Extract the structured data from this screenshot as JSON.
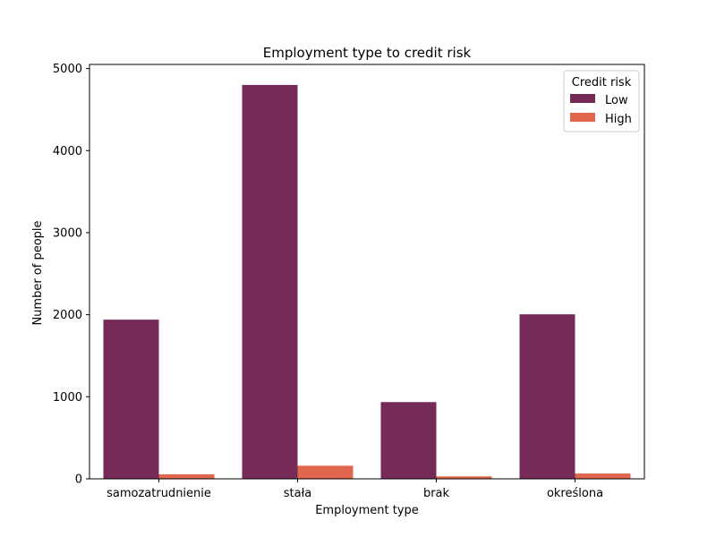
{
  "chart_data": {
    "type": "bar",
    "title": "Employment type to credit risk",
    "xlabel": "Employment type",
    "ylabel": "Number of people",
    "categories": [
      "samozatrudnienie",
      "stała",
      "brak",
      "określona"
    ],
    "series": [
      {
        "name": "Low",
        "color": "#752A58",
        "values": [
          1940,
          4800,
          935,
          2005
        ]
      },
      {
        "name": "High",
        "color": "#E0664D",
        "values": [
          55,
          160,
          30,
          65
        ]
      }
    ],
    "ylim": [
      0,
      5050
    ],
    "yticks": [
      0,
      1000,
      2000,
      3000,
      4000,
      5000
    ],
    "grid": false,
    "legend": {
      "title": "Credit risk",
      "placement": "top-right"
    }
  }
}
